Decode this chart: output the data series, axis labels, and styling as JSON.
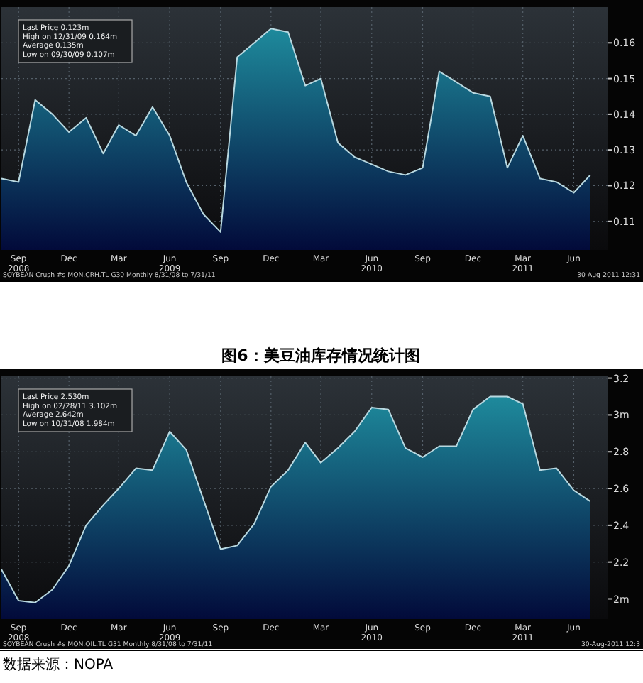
{
  "chart_data": [
    {
      "type": "area",
      "grid": true,
      "x": [
        "2008-08",
        "2008-09",
        "2008-10",
        "2008-11",
        "2008-12",
        "2009-01",
        "2009-02",
        "2009-03",
        "2009-04",
        "2009-05",
        "2009-06",
        "2009-07",
        "2009-08",
        "2009-09",
        "2009-10",
        "2009-11",
        "2009-12",
        "2010-01",
        "2010-02",
        "2010-03",
        "2010-04",
        "2010-05",
        "2010-06",
        "2010-07",
        "2010-08",
        "2010-09",
        "2010-10",
        "2010-11",
        "2010-12",
        "2011-01",
        "2011-02",
        "2011-03",
        "2011-04",
        "2011-05",
        "2011-06",
        "2011-07"
      ],
      "series": [
        {
          "color": "#1e8a9c",
          "values": [
            0.122,
            0.121,
            0.144,
            0.14,
            0.135,
            0.139,
            0.129,
            0.137,
            0.134,
            0.142,
            0.134,
            0.121,
            0.112,
            0.107,
            0.156,
            0.16,
            0.164,
            0.163,
            0.148,
            0.15,
            0.132,
            0.128,
            0.126,
            0.124,
            0.123,
            0.125,
            0.152,
            0.149,
            0.146,
            0.145,
            0.125,
            0.134,
            0.122,
            0.121,
            0.118,
            0.123
          ]
        }
      ],
      "xlim": [
        "2008-08",
        "2011-08"
      ],
      "xticks": [
        {
          "value": "2008-09",
          "label": "Sep\n2008"
        },
        {
          "value": "2008-12",
          "label": "Dec"
        },
        {
          "value": "2009-03",
          "label": "Mar"
        },
        {
          "value": "2009-06",
          "label": "Jun\n2009"
        },
        {
          "value": "2009-09",
          "label": "Sep"
        },
        {
          "value": "2009-12",
          "label": "Dec"
        },
        {
          "value": "2010-03",
          "label": "Mar"
        },
        {
          "value": "2010-06",
          "label": "Jun\n2010"
        },
        {
          "value": "2010-09",
          "label": "Sep"
        },
        {
          "value": "2010-12",
          "label": "Dec"
        },
        {
          "value": "2011-03",
          "label": "Mar\n2011"
        },
        {
          "value": "2011-06",
          "label": "Jun"
        }
      ],
      "ylim": [
        0.102,
        0.17
      ],
      "yticks": [
        0.11,
        0.12,
        0.13,
        0.14,
        0.15,
        0.16
      ],
      "annotations": [
        "Last Price 0.123m",
        "High on 12/31/09 0.164m",
        "Average 0.135m",
        "Low on 09/30/09 0.107m",
        "SOYBEAN Crush #s MON.CRH.TL   G30   Monthly 8/31/08 to 7/31/11",
        "30-Aug-2011 12:31"
      ]
    },
    {
      "type": "area",
      "grid": true,
      "title": "图6：美豆油库存情况统计图",
      "x": [
        "2008-08",
        "2008-09",
        "2008-10",
        "2008-11",
        "2008-12",
        "2009-01",
        "2009-02",
        "2009-03",
        "2009-04",
        "2009-05",
        "2009-06",
        "2009-07",
        "2009-08",
        "2009-09",
        "2009-10",
        "2009-11",
        "2009-12",
        "2010-01",
        "2010-02",
        "2010-03",
        "2010-04",
        "2010-05",
        "2010-06",
        "2010-07",
        "2010-08",
        "2010-09",
        "2010-10",
        "2010-11",
        "2010-12",
        "2011-01",
        "2011-02",
        "2011-03",
        "2011-04",
        "2011-05",
        "2011-06",
        "2011-07"
      ],
      "series": [
        {
          "color": "#1e8a9c",
          "values": [
            2.16,
            1.99,
            1.98,
            2.05,
            2.18,
            2.4,
            2.51,
            2.6,
            2.71,
            2.7,
            2.91,
            2.81,
            2.54,
            2.27,
            2.29,
            2.41,
            2.61,
            2.7,
            2.85,
            2.74,
            2.82,
            2.91,
            3.04,
            3.03,
            2.82,
            2.77,
            2.83,
            2.83,
            3.03,
            3.1,
            3.1,
            3.06,
            2.7,
            2.71,
            2.59,
            2.53
          ]
        }
      ],
      "xlim": [
        "2008-08",
        "2011-08"
      ],
      "xticks": [
        {
          "value": "2008-09",
          "label": "Sep\n2008"
        },
        {
          "value": "2008-12",
          "label": "Dec"
        },
        {
          "value": "2009-03",
          "label": "Mar"
        },
        {
          "value": "2009-06",
          "label": "Jun\n2009"
        },
        {
          "value": "2009-09",
          "label": "Sep"
        },
        {
          "value": "2009-12",
          "label": "Dec"
        },
        {
          "value": "2010-03",
          "label": "Mar"
        },
        {
          "value": "2010-06",
          "label": "Jun\n2010"
        },
        {
          "value": "2010-09",
          "label": "Sep"
        },
        {
          "value": "2010-12",
          "label": "Dec"
        },
        {
          "value": "2011-03",
          "label": "Mar\n2011"
        },
        {
          "value": "2011-06",
          "label": "Jun"
        }
      ],
      "ylim": [
        1.89,
        3.21
      ],
      "yticks": [
        {
          "value": 2,
          "label": "2m"
        },
        2.2,
        2.4,
        2.6,
        2.8,
        {
          "value": 3,
          "label": "3m"
        },
        3.2
      ],
      "annotations": [
        "Last Price 2.530m",
        "High on 02/28/11 3.102m",
        "Average 2.642m",
        "Low on 10/31/08 1.984m",
        "SOYBEAN Crush #s MON.OIL.TL   G31   Monthly 8/31/08 to 7/31/11",
        "30-Aug-2011 12:3",
        "数据来源：NOPA"
      ]
    }
  ]
}
